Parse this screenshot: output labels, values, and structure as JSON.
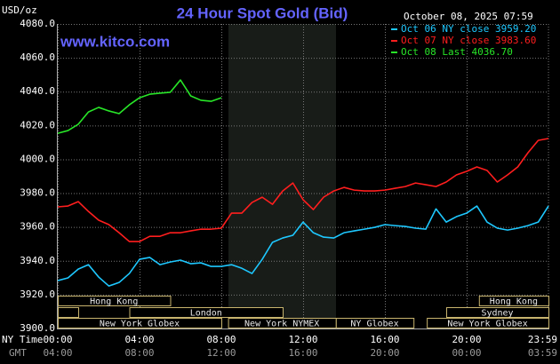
{
  "chart_data": {
    "type": "line",
    "title": "24 Hour Spot Gold (Bid)",
    "timestamp": "October 08, 2025 07:59",
    "site": "www.kitco.com",
    "y_label": "USD/oz",
    "x_label": "NY Time",
    "x2_label": "GMT",
    "x": [
      0,
      0.5,
      1,
      1.5,
      2,
      2.5,
      3,
      3.5,
      4,
      4.5,
      5,
      5.5,
      6,
      6.5,
      7,
      7.5,
      8,
      8.5,
      9,
      9.5,
      10,
      10.5,
      11,
      11.5,
      12,
      12.5,
      13,
      13.5,
      14,
      14.5,
      15,
      15.5,
      16,
      16.5,
      17,
      17.5,
      18,
      18.5,
      19,
      19.5,
      20,
      20.5,
      21,
      21.5,
      22,
      22.5,
      23,
      23.5,
      24
    ],
    "series": [
      {
        "name": "Oct 06 NY close 3959.20",
        "color": "#1ec8ff",
        "values": [
          3928.3,
          3929.9,
          3935.1,
          3937.7,
          3930.4,
          3925.1,
          3927.2,
          3932.5,
          3940.9,
          3942.0,
          3937.7,
          3939.3,
          3940.4,
          3938.3,
          3938.8,
          3936.7,
          3936.7,
          3937.7,
          3935.6,
          3932.5,
          3940.9,
          3950.9,
          3953.5,
          3955.1,
          3962.9,
          3956.6,
          3954.0,
          3953.5,
          3956.6,
          3957.7,
          3958.7,
          3959.8,
          3961.4,
          3960.8,
          3960.3,
          3959.3,
          3958.7,
          3970.7,
          3962.9,
          3966.1,
          3968.2,
          3972.4,
          3962.9,
          3959.3,
          3958.2,
          3959.3,
          3960.8,
          3962.9,
          3972.4
        ]
      },
      {
        "name": "Oct 07 NY close 3983.60",
        "color": "#ff1e1e",
        "values": [
          3971.9,
          3972.4,
          3975.0,
          3969.2,
          3964.0,
          3961.4,
          3956.6,
          3951.4,
          3951.4,
          3954.5,
          3954.5,
          3956.6,
          3956.6,
          3957.7,
          3958.7,
          3958.7,
          3959.3,
          3968.2,
          3968.2,
          3974.5,
          3977.6,
          3973.4,
          3981.3,
          3986.0,
          3976.1,
          3970.3,
          3977.6,
          3981.3,
          3983.4,
          3981.8,
          3981.3,
          3981.3,
          3981.8,
          3982.9,
          3983.9,
          3986.0,
          3985.0,
          3983.9,
          3986.6,
          3990.8,
          3992.9,
          3995.5,
          3993.4,
          3986.6,
          3990.8,
          3995.5,
          4003.9,
          4011.2,
          4012.3
        ]
      },
      {
        "name": "Oct 08 Last 4036.70",
        "color": "#28e628",
        "values": [
          4015.4,
          4017.0,
          4020.7,
          4028.0,
          4030.7,
          4028.6,
          4027.0,
          4032.2,
          4036.4,
          4038.5,
          4039.1,
          4039.6,
          4046.9,
          4037.5,
          4034.9,
          4034.3,
          4036.4,
          null,
          null,
          null,
          null,
          null,
          null,
          null,
          null,
          null,
          null,
          null,
          null,
          null,
          null,
          null,
          null,
          null,
          null,
          null,
          null,
          null,
          null,
          null,
          null,
          null,
          null,
          null,
          null,
          null,
          null,
          null,
          null
        ]
      }
    ],
    "xlim": [
      0,
      24
    ],
    "xticks": [
      {
        "value": 0,
        "label": "00:00"
      },
      {
        "value": 4,
        "label": "04:00"
      },
      {
        "value": 8,
        "label": "08:00"
      },
      {
        "value": 12,
        "label": "12:00"
      },
      {
        "value": 16,
        "label": "16:00"
      },
      {
        "value": 20,
        "label": "20:00"
      },
      {
        "value": 23.98,
        "label": "23:59"
      }
    ],
    "x2tick_labels": [
      "04:00",
      "08:00",
      "12:00",
      "16:00",
      "20:00",
      "00:00",
      "03:59"
    ],
    "ylim": [
      3900,
      4080
    ],
    "yticks": [
      {
        "value": 3900,
        "label": "3900.0"
      },
      {
        "value": 3920,
        "label": "3920.0"
      },
      {
        "value": 3940,
        "label": "3940.0"
      },
      {
        "value": 3960,
        "label": "3960.0"
      },
      {
        "value": 3980,
        "label": "3980.0"
      },
      {
        "value": 4000,
        "label": "4000.0"
      },
      {
        "value": 4020,
        "label": "4020.0"
      },
      {
        "value": 4040,
        "label": "4040.0"
      },
      {
        "value": 4060,
        "label": "4060.0"
      },
      {
        "value": 4080,
        "label": "4080.0"
      }
    ],
    "grid": true,
    "legend": "top-right",
    "session_rows": [
      [
        {
          "name": "Hong Kong",
          "start": 0,
          "end": 5.5
        },
        {
          "name": "Hong Kong",
          "start": 20.6,
          "end": 24
        }
      ],
      [
        {
          "name": "London",
          "start": 3.5,
          "end": 11
        },
        {
          "name": "Sydney",
          "start": 19,
          "end": 24
        }
      ],
      [
        {
          "name": "New York Globex",
          "start": 0,
          "end": 8
        },
        {
          "name": "New York NYMEX",
          "start": 8.33,
          "end": 13.6
        },
        {
          "name": "NY Globex",
          "start": 13.6,
          "end": 17.4
        },
        {
          "name": "New York Globex",
          "start": 18.05,
          "end": 24
        }
      ]
    ]
  }
}
